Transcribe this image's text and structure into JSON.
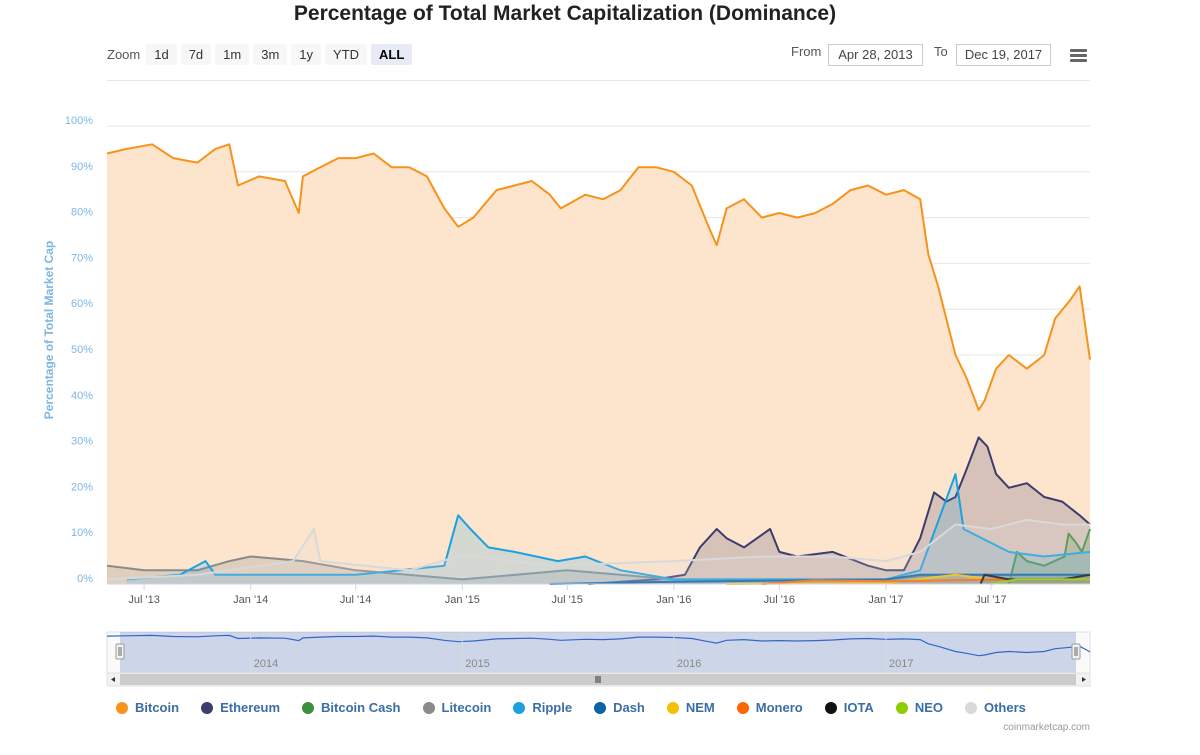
{
  "title": "Percentage of Total Market Capitalization (Dominance)",
  "zoom": {
    "label": "Zoom",
    "buttons": [
      "1d",
      "7d",
      "1m",
      "3m",
      "1y",
      "YTD",
      "ALL"
    ],
    "active": "ALL"
  },
  "range": {
    "from_label": "From",
    "from_value": "Apr 28, 2013",
    "to_label": "To",
    "to_value": "Dec 19, 2017"
  },
  "credit": "coinmarketcap.com",
  "chart_data": {
    "type": "area",
    "title": "Percentage of Total Market Capitalization (Dominance)",
    "ylabel": "Percentage of Total Market Cap",
    "ylim": [
      0,
      100
    ],
    "yticks": [
      "0%",
      "10%",
      "20%",
      "30%",
      "40%",
      "50%",
      "60%",
      "70%",
      "80%",
      "90%",
      "100%"
    ],
    "xlim": [
      "2013-04-28",
      "2017-12-19"
    ],
    "xticks": [
      {
        "label": "Jul '13",
        "date": "2013-07-01"
      },
      {
        "label": "Jan '14",
        "date": "2014-01-01"
      },
      {
        "label": "Jul '14",
        "date": "2014-07-01"
      },
      {
        "label": "Jan '15",
        "date": "2015-01-01"
      },
      {
        "label": "Jul '15",
        "date": "2015-07-01"
      },
      {
        "label": "Jan '16",
        "date": "2016-01-01"
      },
      {
        "label": "Jul '16",
        "date": "2016-07-01"
      },
      {
        "label": "Jan '17",
        "date": "2017-01-01"
      },
      {
        "label": "Jul '17",
        "date": "2017-07-01"
      }
    ],
    "navigator_years": [
      {
        "label": "2014",
        "date": "2014-01-01"
      },
      {
        "label": "2015",
        "date": "2015-01-01"
      },
      {
        "label": "2016",
        "date": "2016-01-01"
      },
      {
        "label": "2017",
        "date": "2017-01-01"
      }
    ],
    "grid": true,
    "legend": "bottom",
    "series": [
      {
        "name": "Bitcoin",
        "color": "#f7931a",
        "fill": "#fde4cc",
        "points": [
          [
            "2013-04-28",
            94
          ],
          [
            "2013-06-01",
            95
          ],
          [
            "2013-07-15",
            96
          ],
          [
            "2013-08-20",
            93
          ],
          [
            "2013-10-01",
            92
          ],
          [
            "2013-11-01",
            95
          ],
          [
            "2013-11-25",
            96
          ],
          [
            "2013-12-10",
            87
          ],
          [
            "2014-01-15",
            89
          ],
          [
            "2014-03-01",
            88
          ],
          [
            "2014-03-25",
            81
          ],
          [
            "2014-04-01",
            89
          ],
          [
            "2014-05-01",
            91
          ],
          [
            "2014-06-01",
            93
          ],
          [
            "2014-07-01",
            93
          ],
          [
            "2014-08-01",
            94
          ],
          [
            "2014-09-01",
            91
          ],
          [
            "2014-10-01",
            91
          ],
          [
            "2014-11-01",
            89
          ],
          [
            "2014-12-01",
            82
          ],
          [
            "2014-12-25",
            78
          ],
          [
            "2015-01-20",
            80
          ],
          [
            "2015-03-01",
            86
          ],
          [
            "2015-04-01",
            87
          ],
          [
            "2015-05-01",
            88
          ],
          [
            "2015-06-01",
            85
          ],
          [
            "2015-06-20",
            82
          ],
          [
            "2015-08-01",
            85
          ],
          [
            "2015-09-01",
            84
          ],
          [
            "2015-10-01",
            86
          ],
          [
            "2015-11-01",
            91
          ],
          [
            "2015-12-01",
            91
          ],
          [
            "2016-01-01",
            90
          ],
          [
            "2016-02-01",
            87
          ],
          [
            "2016-03-01",
            78
          ],
          [
            "2016-03-15",
            74
          ],
          [
            "2016-04-01",
            82
          ],
          [
            "2016-05-01",
            84
          ],
          [
            "2016-06-01",
            80
          ],
          [
            "2016-07-01",
            81
          ],
          [
            "2016-08-01",
            80
          ],
          [
            "2016-09-01",
            81
          ],
          [
            "2016-10-01",
            83
          ],
          [
            "2016-11-01",
            86
          ],
          [
            "2016-12-01",
            87
          ],
          [
            "2017-01-01",
            85
          ],
          [
            "2017-02-01",
            86
          ],
          [
            "2017-03-01",
            84
          ],
          [
            "2017-03-15",
            72
          ],
          [
            "2017-04-01",
            65
          ],
          [
            "2017-05-01",
            50
          ],
          [
            "2017-05-20",
            45
          ],
          [
            "2017-06-10",
            38
          ],
          [
            "2017-06-20",
            40
          ],
          [
            "2017-07-10",
            47
          ],
          [
            "2017-08-01",
            50
          ],
          [
            "2017-09-01",
            47
          ],
          [
            "2017-10-01",
            50
          ],
          [
            "2017-10-20",
            58
          ],
          [
            "2017-11-15",
            62
          ],
          [
            "2017-12-01",
            65
          ],
          [
            "2017-12-10",
            57
          ],
          [
            "2017-12-19",
            49
          ]
        ]
      },
      {
        "name": "Ethereum",
        "color": "#3c3c6e",
        "fill": "rgba(60,60,110,0.20)",
        "points": [
          [
            "2015-08-07",
            0
          ],
          [
            "2015-12-01",
            1
          ],
          [
            "2016-01-20",
            2
          ],
          [
            "2016-02-15",
            8
          ],
          [
            "2016-03-15",
            12
          ],
          [
            "2016-04-01",
            10
          ],
          [
            "2016-05-01",
            8
          ],
          [
            "2016-06-15",
            12
          ],
          [
            "2016-07-01",
            7
          ],
          [
            "2016-08-01",
            6
          ],
          [
            "2016-10-01",
            7
          ],
          [
            "2016-12-01",
            4
          ],
          [
            "2017-01-01",
            3
          ],
          [
            "2017-02-01",
            3
          ],
          [
            "2017-03-01",
            10
          ],
          [
            "2017-03-25",
            20
          ],
          [
            "2017-04-15",
            18
          ],
          [
            "2017-05-01",
            19
          ],
          [
            "2017-05-20",
            25
          ],
          [
            "2017-06-10",
            32
          ],
          [
            "2017-06-25",
            30
          ],
          [
            "2017-07-10",
            24
          ],
          [
            "2017-08-01",
            21
          ],
          [
            "2017-09-01",
            22
          ],
          [
            "2017-10-01",
            19
          ],
          [
            "2017-11-01",
            18
          ],
          [
            "2017-12-01",
            15
          ],
          [
            "2017-12-19",
            13
          ]
        ]
      },
      {
        "name": "Bitcoin Cash",
        "color": "#3c8f3c",
        "fill": "rgba(60,143,60,0.22)",
        "points": [
          [
            "2017-08-01",
            0
          ],
          [
            "2017-08-15",
            7
          ],
          [
            "2017-09-01",
            5
          ],
          [
            "2017-10-01",
            4
          ],
          [
            "2017-11-05",
            6
          ],
          [
            "2017-11-12",
            11
          ],
          [
            "2017-11-25",
            9
          ],
          [
            "2017-12-05",
            7
          ],
          [
            "2017-12-19",
            12
          ]
        ]
      },
      {
        "name": "Litecoin",
        "color": "#8a8a8a",
        "fill": "rgba(138,138,138,0.25)",
        "points": [
          [
            "2013-04-28",
            4
          ],
          [
            "2013-07-01",
            3
          ],
          [
            "2013-10-01",
            3
          ],
          [
            "2013-11-25",
            5
          ],
          [
            "2014-01-01",
            6
          ],
          [
            "2014-04-01",
            5
          ],
          [
            "2014-07-01",
            3
          ],
          [
            "2015-01-01",
            1
          ],
          [
            "2015-07-01",
            3
          ],
          [
            "2016-01-01",
            1
          ],
          [
            "2016-07-01",
            1
          ],
          [
            "2017-01-01",
            1
          ],
          [
            "2017-04-01",
            2
          ],
          [
            "2017-07-01",
            2
          ],
          [
            "2017-12-19",
            2
          ]
        ]
      },
      {
        "name": "Ripple",
        "color": "#1ba1e2",
        "fill": "rgba(27,161,226,0.18)",
        "points": [
          [
            "2013-06-01",
            1
          ],
          [
            "2013-09-01",
            2
          ],
          [
            "2013-10-15",
            5
          ],
          [
            "2013-11-01",
            2
          ],
          [
            "2014-01-01",
            2
          ],
          [
            "2014-07-01",
            2
          ],
          [
            "2014-12-01",
            4
          ],
          [
            "2014-12-25",
            15
          ],
          [
            "2015-01-15",
            12
          ],
          [
            "2015-02-15",
            8
          ],
          [
            "2015-04-01",
            7
          ],
          [
            "2015-06-15",
            5
          ],
          [
            "2015-08-01",
            6
          ],
          [
            "2015-10-01",
            3
          ],
          [
            "2016-01-01",
            1
          ],
          [
            "2016-07-01",
            1
          ],
          [
            "2017-01-01",
            1
          ],
          [
            "2017-03-01",
            3
          ],
          [
            "2017-05-01",
            24
          ],
          [
            "2017-05-15",
            12
          ],
          [
            "2017-07-01",
            9
          ],
          [
            "2017-08-01",
            7
          ],
          [
            "2017-10-01",
            6
          ],
          [
            "2017-12-19",
            7
          ]
        ]
      },
      {
        "name": "Dash",
        "color": "#0d62a8",
        "fill": "rgba(13,98,168,0.12)",
        "points": [
          [
            "2015-06-01",
            0
          ],
          [
            "2016-01-01",
            0.5
          ],
          [
            "2017-01-01",
            1
          ],
          [
            "2017-03-01",
            2
          ],
          [
            "2017-08-01",
            2
          ],
          [
            "2017-12-19",
            2
          ]
        ]
      },
      {
        "name": "NEM",
        "color": "#f5c000",
        "fill": "rgba(245,192,0,0.10)",
        "points": [
          [
            "2016-04-01",
            0
          ],
          [
            "2017-01-01",
            0.2
          ],
          [
            "2017-05-01",
            2
          ],
          [
            "2017-07-01",
            1
          ],
          [
            "2017-12-19",
            1
          ]
        ]
      },
      {
        "name": "Monero",
        "color": "#ff6600",
        "fill": "rgba(255,102,0,0.10)",
        "points": [
          [
            "2016-06-01",
            0
          ],
          [
            "2016-09-01",
            0.8
          ],
          [
            "2017-01-01",
            0.6
          ],
          [
            "2017-08-01",
            1
          ],
          [
            "2017-12-19",
            1
          ]
        ]
      },
      {
        "name": "IOTA",
        "color": "#111111",
        "fill": "rgba(0,0,0,0.08)",
        "points": [
          [
            "2017-06-13",
            0
          ],
          [
            "2017-06-20",
            2
          ],
          [
            "2017-08-01",
            1
          ],
          [
            "2017-11-01",
            1
          ],
          [
            "2017-12-19",
            2
          ]
        ]
      },
      {
        "name": "NEO",
        "color": "#8ccc00",
        "fill": "rgba(140,204,0,0.10)",
        "points": [
          [
            "2017-07-01",
            0
          ],
          [
            "2017-08-15",
            1
          ],
          [
            "2017-12-19",
            1
          ]
        ]
      },
      {
        "name": "Others",
        "color": "#d9d9d9",
        "fill": "rgba(220,220,220,0.20)",
        "points": [
          [
            "2013-04-28",
            1
          ],
          [
            "2013-10-01",
            2
          ],
          [
            "2014-03-15",
            5
          ],
          [
            "2014-04-20",
            12
          ],
          [
            "2014-05-01",
            5
          ],
          [
            "2014-10-01",
            3
          ],
          [
            "2014-12-25",
            6
          ],
          [
            "2015-02-01",
            6
          ],
          [
            "2015-06-01",
            4
          ],
          [
            "2016-01-01",
            5
          ],
          [
            "2016-06-01",
            6
          ],
          [
            "2016-10-01",
            6
          ],
          [
            "2017-01-01",
            5
          ],
          [
            "2017-03-01",
            7
          ],
          [
            "2017-05-01",
            13
          ],
          [
            "2017-07-01",
            12
          ],
          [
            "2017-09-01",
            14
          ],
          [
            "2017-11-01",
            13
          ],
          [
            "2017-12-19",
            13
          ]
        ]
      }
    ],
    "navigator": {
      "series": "Bitcoin",
      "range": [
        "2013-04-28",
        "2017-12-19"
      ]
    }
  }
}
